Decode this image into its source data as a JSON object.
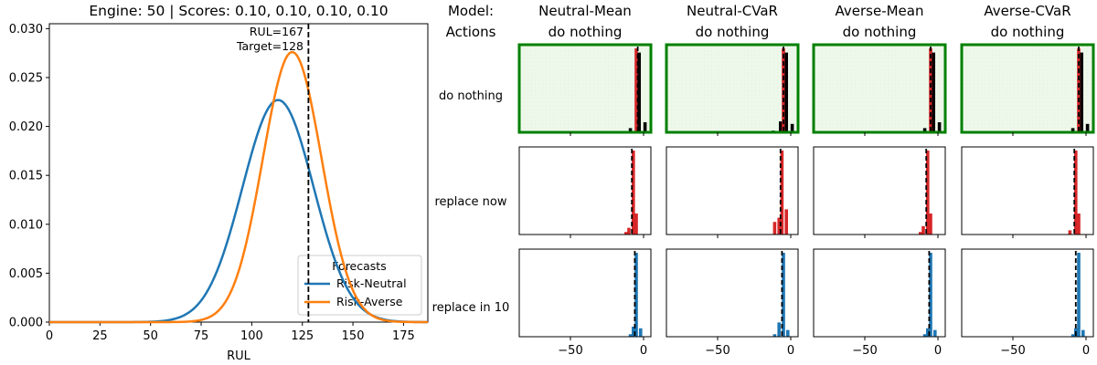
{
  "colors": {
    "risk_neutral": "#1f77b4",
    "risk_averse": "#ff7f0e",
    "bar_red": "#d62728",
    "bar_black": "#000000",
    "bar_blue": "#1f77b4",
    "highlight_border": "#008000",
    "highlight_fill": "#eef8ea"
  },
  "chart_data": [
    {
      "type": "line",
      "title": "Engine: 50 | Scores: 0.10, 0.10, 0.10, 0.10",
      "xlabel": "RUL",
      "ylabel": "",
      "xlim": [
        0,
        187
      ],
      "ylim": [
        0,
        0.0305
      ],
      "x_ticks": [
        0,
        25,
        50,
        75,
        100,
        125,
        150,
        175
      ],
      "y_ticks": [
        "0.000",
        "0.005",
        "0.010",
        "0.015",
        "0.020",
        "0.025",
        "0.030"
      ],
      "grid": false,
      "legend": {
        "title": "Forecasts",
        "placement": "lower-right"
      },
      "series": [
        {
          "name": "Risk-Neutral",
          "distribution": "normal",
          "mean": 113,
          "sd": 17.6,
          "peak": 0.0227
        },
        {
          "name": "Risk-Averse",
          "distribution": "normal",
          "mean": 120,
          "sd": 14.5,
          "peak": 0.0276
        }
      ],
      "annotations": [
        {
          "text": "RUL=167"
        },
        {
          "text": "Target=128"
        }
      ],
      "vline": {
        "x": 128,
        "style": "dashed"
      }
    },
    {
      "type": "bar",
      "description": "grid of histograms (rows = actions, columns = models)",
      "row_header_title": "Model:",
      "col_header_title": "Actions",
      "models": [
        {
          "name": "Neutral-Mean",
          "chosen_action": "do nothing"
        },
        {
          "name": "Neutral-CVaR",
          "chosen_action": "do nothing"
        },
        {
          "name": "Averse-Mean",
          "chosen_action": "do nothing"
        },
        {
          "name": "Averse-CVaR",
          "chosen_action": "do nothing"
        }
      ],
      "actions": [
        "do nothing",
        "replace now",
        "replace in 10"
      ],
      "xlim": [
        -85,
        5
      ],
      "x_ticks": [
        -50,
        0
      ],
      "highlighted_row": "do nothing",
      "panels": [
        [
          {
            "vline": -4,
            "bars": [
              {
                "x": -9,
                "h": 0.05,
                "c": "bar_black"
              },
              {
                "x": -5,
                "h": 1.0,
                "c": "bar_red"
              },
              {
                "x": -3,
                "h": 0.95,
                "c": "bar_black"
              },
              {
                "x": 1,
                "h": 0.12,
                "c": "bar_black"
              }
            ]
          },
          {
            "vline": -5,
            "bars": [
              {
                "x": -12,
                "h": 0.02,
                "c": "bar_black"
              },
              {
                "x": -7,
                "h": 0.13,
                "c": "bar_black"
              },
              {
                "x": -5,
                "h": 1.0,
                "c": "bar_red"
              },
              {
                "x": -3,
                "h": 0.95,
                "c": "bar_black"
              },
              {
                "x": 1,
                "h": 0.1,
                "c": "bar_black"
              }
            ]
          },
          {
            "vline": -5,
            "bars": [
              {
                "x": -9,
                "h": 0.05,
                "c": "bar_black"
              },
              {
                "x": -5,
                "h": 1.0,
                "c": "bar_red"
              },
              {
                "x": -3,
                "h": 0.95,
                "c": "bar_black"
              },
              {
                "x": 1,
                "h": 0.12,
                "c": "bar_black"
              }
            ]
          },
          {
            "vline": -5,
            "bars": [
              {
                "x": -9,
                "h": 0.05,
                "c": "bar_black"
              },
              {
                "x": -5,
                "h": 1.0,
                "c": "bar_red"
              },
              {
                "x": -3,
                "h": 0.95,
                "c": "bar_black"
              },
              {
                "x": 1,
                "h": 0.1,
                "c": "bar_black"
              }
            ]
          }
        ],
        [
          {
            "vline": -8,
            "bars": [
              {
                "x": -12,
                "h": 0.03,
                "c": "bar_red"
              },
              {
                "x": -10,
                "h": 0.08,
                "c": "bar_red"
              },
              {
                "x": -7,
                "h": 1.0,
                "c": "bar_red"
              },
              {
                "x": -5,
                "h": 0.25,
                "c": "bar_red"
              }
            ]
          },
          {
            "vline": -7,
            "bars": [
              {
                "x": -11,
                "h": 0.15,
                "c": "bar_red"
              },
              {
                "x": -8,
                "h": 0.2,
                "c": "bar_red"
              },
              {
                "x": -6,
                "h": 1.0,
                "c": "bar_red"
              },
              {
                "x": -3,
                "h": 0.3,
                "c": "bar_red"
              }
            ]
          },
          {
            "vline": -8,
            "bars": [
              {
                "x": -12,
                "h": 0.03,
                "c": "bar_red"
              },
              {
                "x": -10,
                "h": 0.1,
                "c": "bar_red"
              },
              {
                "x": -7,
                "h": 1.0,
                "c": "bar_red"
              },
              {
                "x": -5,
                "h": 0.25,
                "c": "bar_red"
              }
            ]
          },
          {
            "vline": -8,
            "bars": [
              {
                "x": -11,
                "h": 0.05,
                "c": "bar_red"
              },
              {
                "x": -7,
                "h": 1.0,
                "c": "bar_red"
              },
              {
                "x": -5,
                "h": 0.25,
                "c": "bar_red"
              }
            ]
          }
        ],
        [
          {
            "vline": -6,
            "bars": [
              {
                "x": -9,
                "h": 0.03,
                "c": "bar_blue"
              },
              {
                "x": -7,
                "h": 0.12,
                "c": "bar_blue"
              },
              {
                "x": -5,
                "h": 1.0,
                "c": "bar_blue"
              },
              {
                "x": -2,
                "h": 0.1,
                "c": "bar_blue"
              }
            ]
          },
          {
            "vline": -6,
            "bars": [
              {
                "x": -11,
                "h": 0.03,
                "c": "bar_blue"
              },
              {
                "x": -8,
                "h": 0.17,
                "c": "bar_blue"
              },
              {
                "x": -5,
                "h": 1.0,
                "c": "bar_blue"
              },
              {
                "x": -2,
                "h": 0.08,
                "c": "bar_blue"
              }
            ]
          },
          {
            "vline": -6,
            "bars": [
              {
                "x": -9,
                "h": 0.03,
                "c": "bar_blue"
              },
              {
                "x": -7,
                "h": 0.1,
                "c": "bar_blue"
              },
              {
                "x": -5,
                "h": 1.0,
                "c": "bar_blue"
              },
              {
                "x": -2,
                "h": 0.08,
                "c": "bar_blue"
              }
            ]
          },
          {
            "vline": -7,
            "bars": [
              {
                "x": -9,
                "h": 0.03,
                "c": "bar_blue"
              },
              {
                "x": -7,
                "h": 0.1,
                "c": "bar_blue"
              },
              {
                "x": -5,
                "h": 1.0,
                "c": "bar_blue"
              },
              {
                "x": -2,
                "h": 0.08,
                "c": "bar_blue"
              }
            ]
          }
        ]
      ]
    }
  ]
}
